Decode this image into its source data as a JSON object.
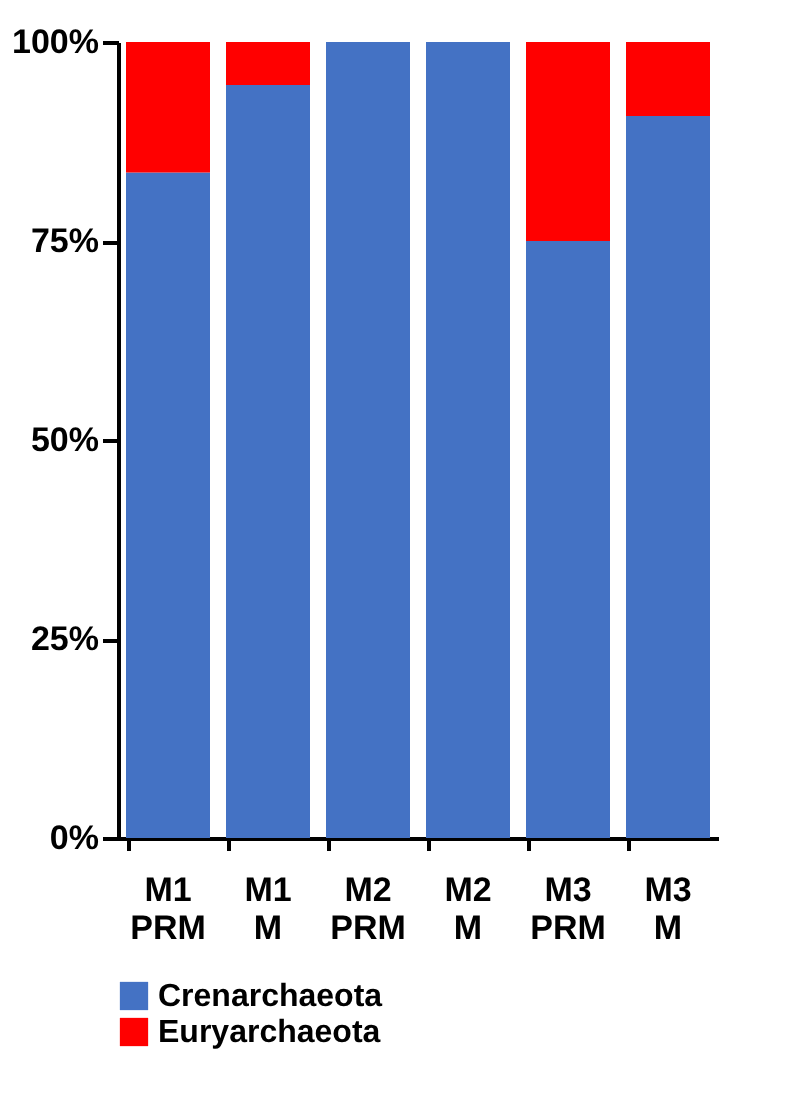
{
  "chart_data": {
    "type": "bar",
    "stacked": true,
    "categories": [
      "M1 PRM",
      "M1 M",
      "M2 PRM",
      "M2 M",
      "M3 PRM",
      "M3 M"
    ],
    "series": [
      {
        "name": "Crenarchaeota",
        "color": "#4472c4",
        "values": [
          83.6,
          94.6,
          100,
          100,
          75,
          90.7
        ]
      },
      {
        "name": "Euryarchaeota",
        "color": "#ff0000",
        "values": [
          16.4,
          5.4,
          0,
          0,
          25,
          9.3
        ]
      }
    ],
    "ylim": [
      0,
      100
    ],
    "yticks": [
      {
        "value": 0,
        "label": "0%"
      },
      {
        "value": 25,
        "label": "25%"
      },
      {
        "value": 50,
        "label": "50%"
      },
      {
        "value": 75,
        "label": "75%"
      },
      {
        "value": 100,
        "label": "100%"
      }
    ],
    "grid": false,
    "legend": "bottom"
  }
}
